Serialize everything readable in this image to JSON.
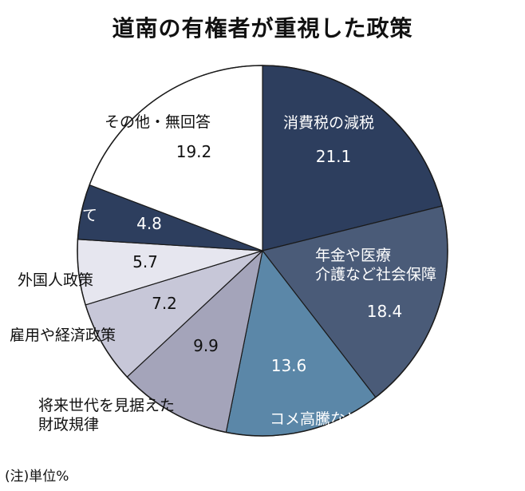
{
  "chart_data": {
    "type": "pie",
    "title": "道南の有権者が重視した政策",
    "unit_note": "(注)単位%",
    "slices": [
      {
        "label": [
          "消費税の減税"
        ],
        "value": 21.1,
        "color": "#2d3e5e",
        "text_color": "#ffffff"
      },
      {
        "label": [
          "年金や医療",
          "介護など社会保障"
        ],
        "value": 18.4,
        "color": "#4a5b78",
        "text_color": "#ffffff"
      },
      {
        "label": [
          "コメ高騰など物価高対策"
        ],
        "value": 13.6,
        "color": "#5b87a8",
        "text_color": "#ffffff"
      },
      {
        "label": [
          "将来世代を見据えた",
          "財政規律"
        ],
        "value": 9.9,
        "color": "#a4a4ba",
        "text_color": "#111111"
      },
      {
        "label": [
          "雇用や経済政策"
        ],
        "value": 7.2,
        "color": "#c7c7d8",
        "text_color": "#111111"
      },
      {
        "label": [
          "外国人政策"
        ],
        "value": 5.7,
        "color": "#e6e6ef",
        "text_color": "#111111"
      },
      {
        "label": [
          "教育や子育て"
        ],
        "value": 4.8,
        "color": "#2d3e5e",
        "text_color": "#ffffff"
      },
      {
        "label": [
          "その他・無回答"
        ],
        "value": 19.2,
        "color": "#ffffff",
        "text_color": "#111111"
      }
    ]
  }
}
